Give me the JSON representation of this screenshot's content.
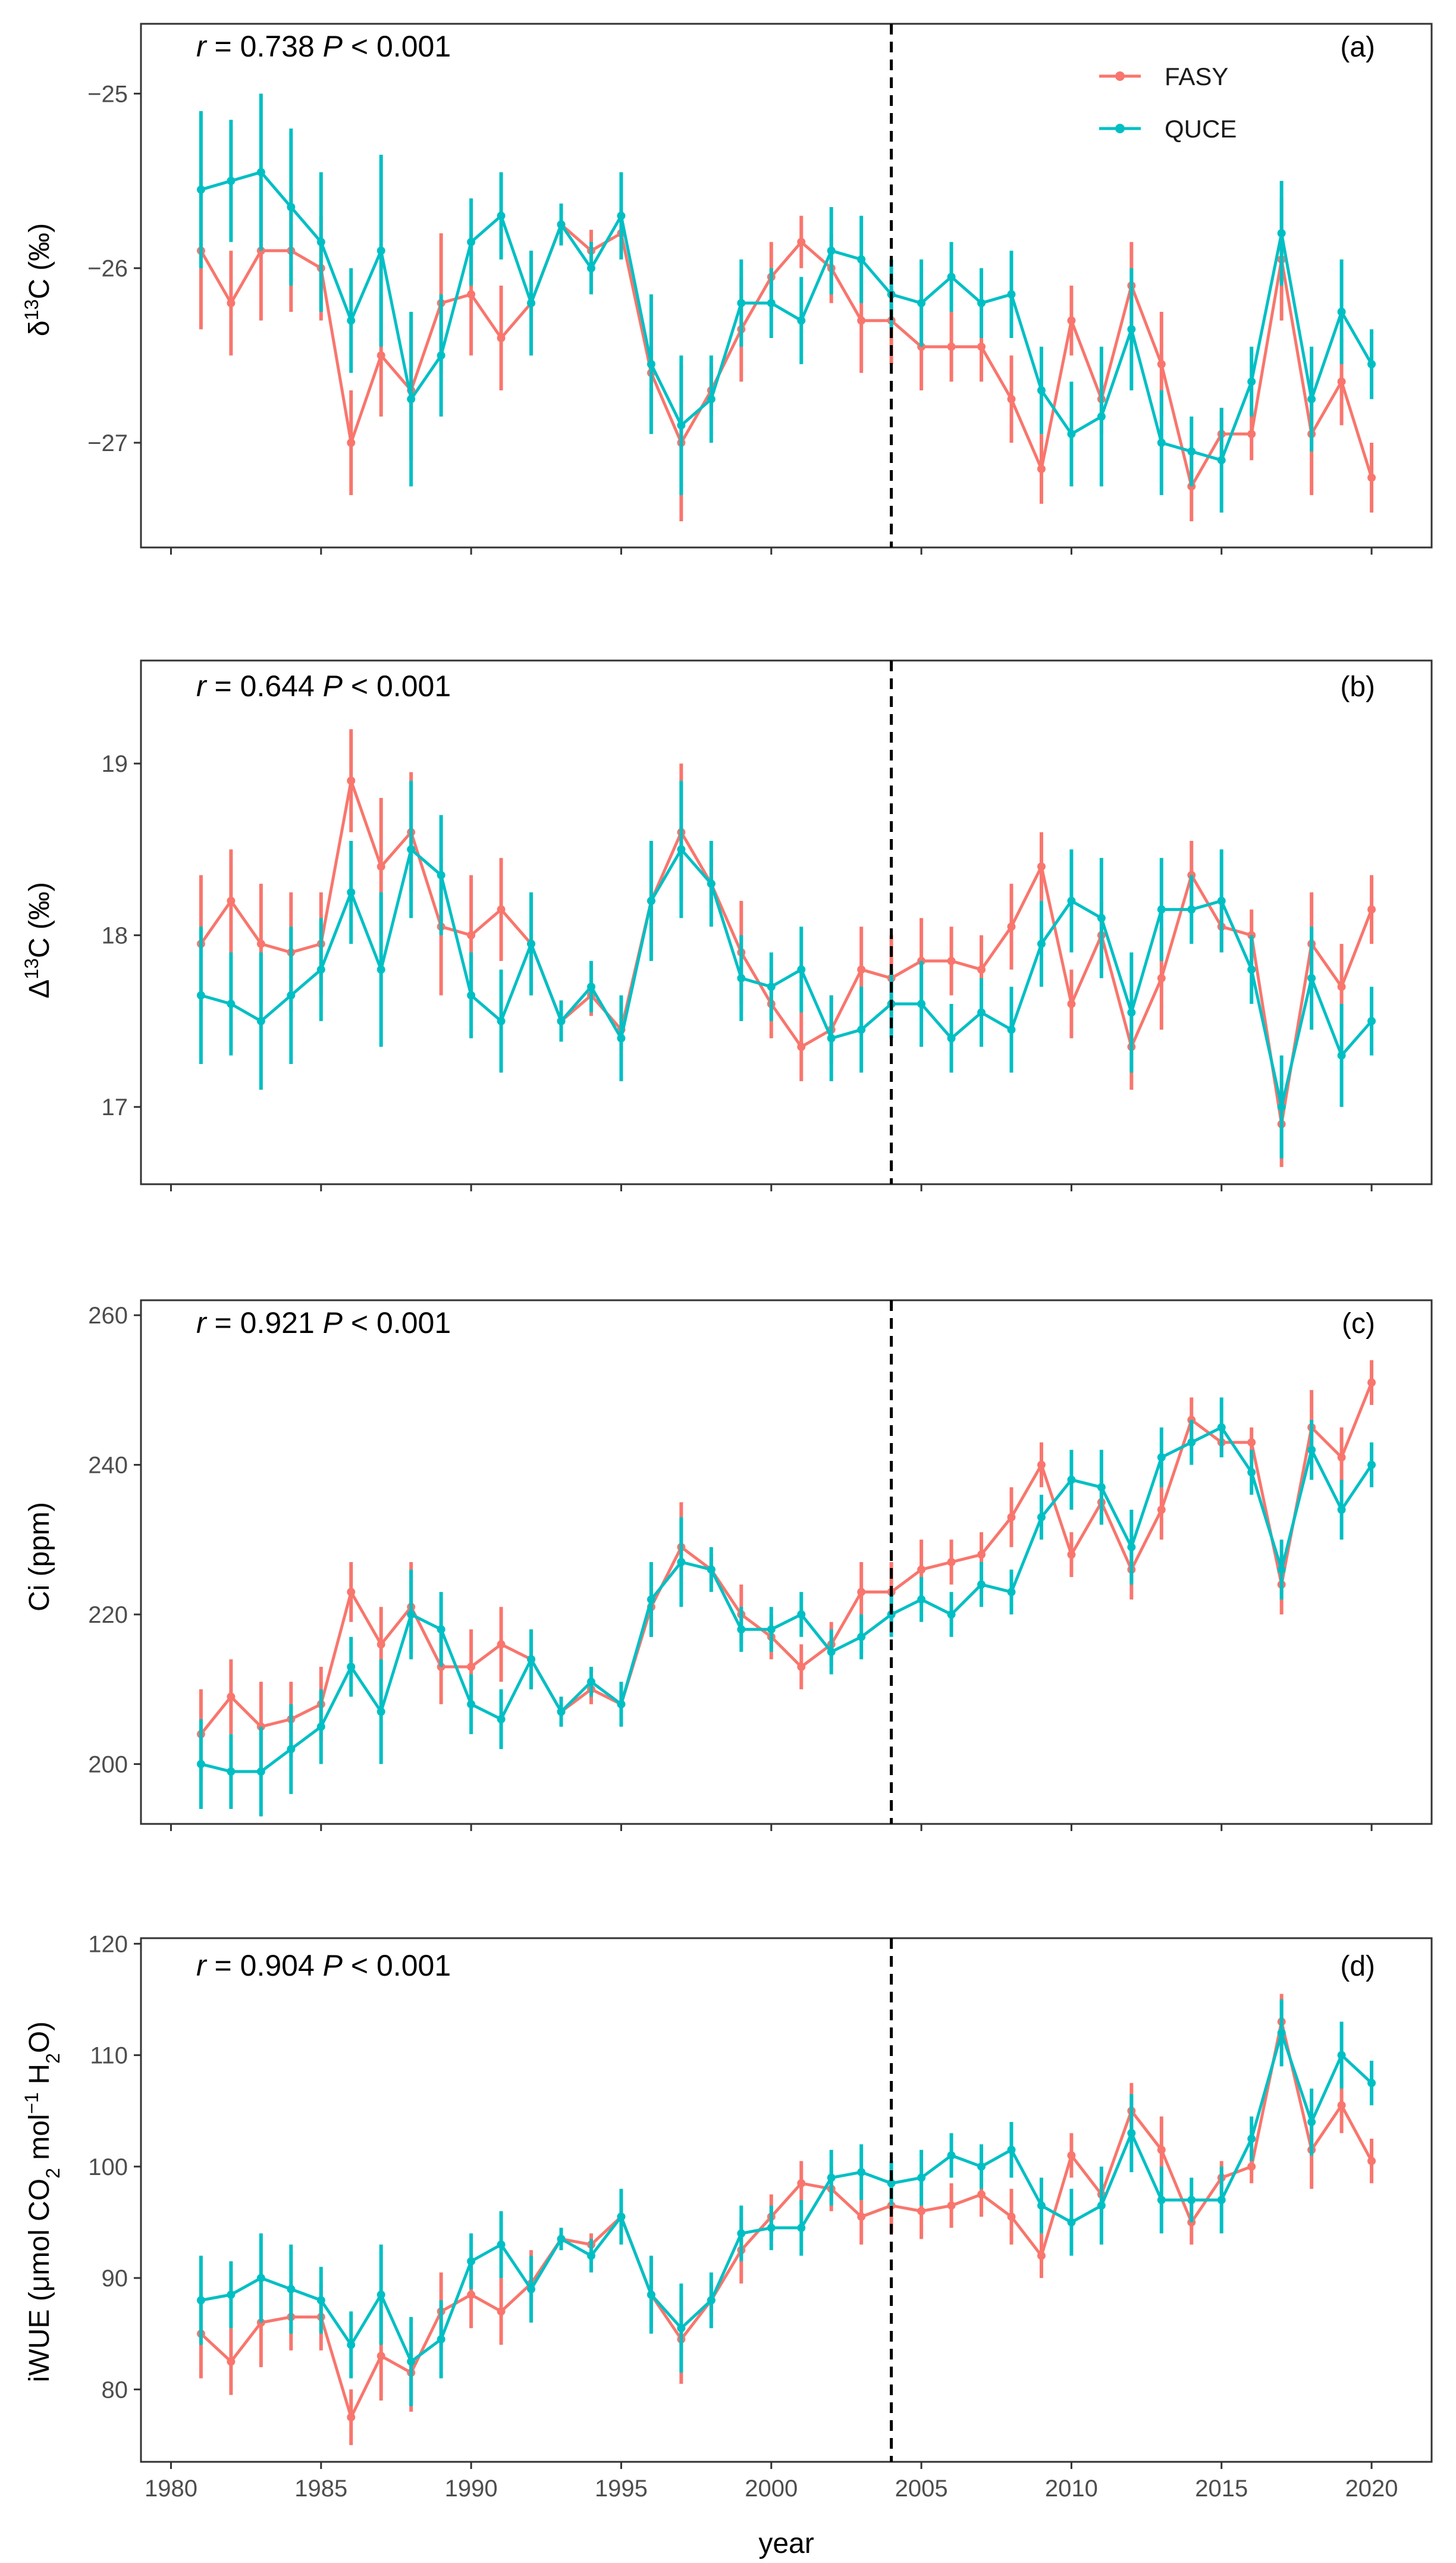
{
  "colors": {
    "FASY": "#F8766D",
    "QUCE": "#00BFC4"
  },
  "xaxis": {
    "title": "year",
    "range": [
      1979,
      2022
    ],
    "ticks": [
      1980,
      1985,
      1990,
      1995,
      2000,
      2005,
      2010,
      2015,
      2020
    ],
    "tick_labels": [
      "1980",
      "1985",
      "1990",
      "1995",
      "2000",
      "2005",
      "2010",
      "2015",
      "2020"
    ]
  },
  "legend": {
    "entries": [
      "FASY",
      "QUCE"
    ],
    "placement": "top-right of panel (a)"
  },
  "chart_data": [
    {
      "type": "line",
      "panel": "(a)",
      "stat_text": {
        "r": "r",
        "eq": " = 0.738 ",
        "P": "P",
        "pval": " < 0.001"
      },
      "ylabel": "δ13C (‰)",
      "ylabel_parts": {
        "main": "δ",
        "sup": "13",
        "rest": "C (‰)"
      },
      "ylim": [
        -27.6,
        -24.6
      ],
      "yticks": [
        -27,
        -26,
        -25
      ],
      "ytick_labels": [
        "−27",
        "−26",
        "−25"
      ],
      "vline_x": 2004,
      "x": [
        1981,
        1982,
        1983,
        1984,
        1985,
        1986,
        1987,
        1988,
        1989,
        1990,
        1991,
        1992,
        1993,
        1994,
        1995,
        1996,
        1997,
        1998,
        1999,
        2000,
        2001,
        2002,
        2003,
        2004,
        2005,
        2006,
        2007,
        2008,
        2009,
        2010,
        2011,
        2012,
        2013,
        2014,
        2015,
        2016,
        2017,
        2018,
        2019,
        2020
      ],
      "series": [
        {
          "name": "FASY",
          "values": [
            -25.9,
            -26.2,
            -25.9,
            -25.9,
            -26.0,
            -27.0,
            -26.5,
            -26.7,
            -26.2,
            -26.15,
            -26.4,
            -26.2,
            -25.75,
            -25.9,
            -25.8,
            -26.6,
            -27.0,
            -26.7,
            -26.35,
            -26.05,
            -25.85,
            -26.0,
            -26.3,
            -26.3,
            -26.45,
            -26.45,
            -26.45,
            -26.75,
            -27.15,
            -26.3,
            -26.75,
            -26.1,
            -26.55,
            -27.25,
            -26.95,
            -26.95,
            -25.95,
            -26.95,
            -26.65,
            -27.2
          ],
          "errors": [
            0.45,
            0.3,
            0.4,
            0.35,
            0.3,
            0.3,
            0.35,
            0.4,
            0.4,
            0.35,
            0.3,
            0.3,
            0.12,
            0.12,
            0.15,
            0.25,
            0.45,
            0.15,
            0.3,
            0.2,
            0.15,
            0.2,
            0.3,
            0.25,
            0.25,
            0.2,
            0.2,
            0.25,
            0.2,
            0.2,
            0.2,
            0.25,
            0.3,
            0.2,
            0.15,
            0.15,
            0.35,
            0.35,
            0.25,
            0.2
          ]
        },
        {
          "name": "QUCE",
          "values": [
            -25.55,
            -25.5,
            -25.45,
            -25.65,
            -25.85,
            -26.3,
            -25.9,
            -26.75,
            -26.5,
            -25.85,
            -25.7,
            -26.2,
            -25.75,
            -26.0,
            -25.7,
            -26.55,
            -26.9,
            -26.75,
            -26.2,
            -26.2,
            -26.3,
            -25.9,
            -25.95,
            -26.15,
            -26.2,
            -26.05,
            -26.2,
            -26.15,
            -26.7,
            -26.95,
            -26.85,
            -26.35,
            -27.0,
            -27.05,
            -27.1,
            -26.65,
            -25.8,
            -26.75,
            -26.25,
            -26.55
          ],
          "errors": [
            0.45,
            0.35,
            0.45,
            0.45,
            0.4,
            0.3,
            0.55,
            0.5,
            0.35,
            0.25,
            0.25,
            0.3,
            0.12,
            0.15,
            0.25,
            0.4,
            0.4,
            0.25,
            0.25,
            0.2,
            0.25,
            0.25,
            0.25,
            0.2,
            0.25,
            0.2,
            0.2,
            0.25,
            0.25,
            0.3,
            0.4,
            0.35,
            0.3,
            0.2,
            0.3,
            0.2,
            0.3,
            0.3,
            0.3,
            0.2
          ]
        }
      ]
    },
    {
      "type": "line",
      "panel": "(b)",
      "stat_text": {
        "r": "r",
        "eq": " = 0.644 ",
        "P": "P",
        "pval": " < 0.001"
      },
      "ylabel": "Δ13C (‰)",
      "ylabel_parts": {
        "main": "Δ",
        "sup": "13",
        "rest": "C (‰)"
      },
      "ylim": [
        16.55,
        19.6
      ],
      "yticks": [
        17,
        18,
        19
      ],
      "ytick_labels": [
        "17",
        "18",
        "19"
      ],
      "vline_x": 2004,
      "x": [
        1981,
        1982,
        1983,
        1984,
        1985,
        1986,
        1987,
        1988,
        1989,
        1990,
        1991,
        1992,
        1993,
        1994,
        1995,
        1996,
        1997,
        1998,
        1999,
        2000,
        2001,
        2002,
        2003,
        2004,
        2005,
        2006,
        2007,
        2008,
        2009,
        2010,
        2011,
        2012,
        2013,
        2014,
        2015,
        2016,
        2017,
        2018,
        2019,
        2020
      ],
      "series": [
        {
          "name": "FASY",
          "values": [
            17.95,
            18.2,
            17.95,
            17.9,
            17.95,
            18.9,
            18.4,
            18.6,
            18.05,
            18.0,
            18.15,
            17.95,
            17.5,
            17.65,
            17.45,
            18.2,
            18.6,
            18.3,
            17.9,
            17.6,
            17.35,
            17.45,
            17.8,
            17.75,
            17.85,
            17.85,
            17.8,
            18.05,
            18.4,
            17.6,
            18.0,
            17.35,
            17.75,
            18.35,
            18.05,
            18.0,
            16.9,
            17.95,
            17.7,
            18.15
          ],
          "errors": [
            0.4,
            0.3,
            0.35,
            0.35,
            0.3,
            0.3,
            0.4,
            0.35,
            0.4,
            0.35,
            0.3,
            0.3,
            0.12,
            0.12,
            0.15,
            0.3,
            0.4,
            0.15,
            0.3,
            0.2,
            0.2,
            0.2,
            0.25,
            0.25,
            0.25,
            0.2,
            0.2,
            0.25,
            0.2,
            0.2,
            0.2,
            0.25,
            0.3,
            0.2,
            0.15,
            0.15,
            0.25,
            0.3,
            0.25,
            0.2
          ]
        },
        {
          "name": "QUCE",
          "values": [
            17.65,
            17.6,
            17.5,
            17.65,
            17.8,
            18.25,
            17.8,
            18.5,
            18.35,
            17.65,
            17.5,
            17.95,
            17.5,
            17.7,
            17.4,
            18.2,
            18.5,
            18.3,
            17.75,
            17.7,
            17.8,
            17.4,
            17.45,
            17.6,
            17.6,
            17.4,
            17.55,
            17.45,
            17.95,
            18.2,
            18.1,
            17.55,
            18.15,
            18.15,
            18.2,
            17.8,
            17.0,
            17.75,
            17.3,
            17.5
          ],
          "errors": [
            0.4,
            0.3,
            0.4,
            0.4,
            0.3,
            0.3,
            0.45,
            0.4,
            0.35,
            0.25,
            0.3,
            0.3,
            0.12,
            0.15,
            0.25,
            0.35,
            0.4,
            0.25,
            0.25,
            0.2,
            0.25,
            0.25,
            0.25,
            0.2,
            0.25,
            0.2,
            0.2,
            0.25,
            0.25,
            0.3,
            0.35,
            0.35,
            0.3,
            0.2,
            0.3,
            0.2,
            0.3,
            0.3,
            0.3,
            0.2
          ]
        }
      ]
    },
    {
      "type": "line",
      "panel": "(c)",
      "stat_text": {
        "r": "r",
        "eq": " = 0.921 ",
        "P": "P",
        "pval": " < 0.001"
      },
      "ylabel": "Ci (ppm)",
      "ylim": [
        192,
        262
      ],
      "yticks": [
        200,
        220,
        240,
        260
      ],
      "ytick_labels": [
        "200",
        "220",
        "240",
        "260"
      ],
      "vline_x": 2004,
      "x": [
        1981,
        1982,
        1983,
        1984,
        1985,
        1986,
        1987,
        1988,
        1989,
        1990,
        1991,
        1992,
        1993,
        1994,
        1995,
        1996,
        1997,
        1998,
        1999,
        2000,
        2001,
        2002,
        2003,
        2004,
        2005,
        2006,
        2007,
        2008,
        2009,
        2010,
        2011,
        2012,
        2013,
        2014,
        2015,
        2016,
        2017,
        2018,
        2019,
        2020
      ],
      "series": [
        {
          "name": "FASY",
          "values": [
            204,
            209,
            205,
            206,
            208,
            223,
            216,
            221,
            213,
            213,
            216,
            214,
            207,
            210,
            208,
            221,
            229,
            226,
            220,
            217,
            213,
            216,
            223,
            223,
            226,
            227,
            228,
            233,
            240,
            228,
            235,
            226,
            234,
            246,
            243,
            243,
            224,
            245,
            241,
            251
          ],
          "errors": [
            6,
            5,
            6,
            5,
            5,
            4,
            5,
            6,
            5,
            5,
            5,
            4,
            2,
            2,
            2,
            4,
            6,
            2,
            4,
            3,
            3,
            3,
            4,
            4,
            4,
            3,
            3,
            4,
            3,
            3,
            3,
            4,
            4,
            3,
            2,
            2,
            4,
            5,
            4,
            3
          ]
        },
        {
          "name": "QUCE",
          "values": [
            200,
            199,
            199,
            202,
            205,
            213,
            207,
            220,
            218,
            208,
            206,
            214,
            207,
            211,
            208,
            222,
            227,
            226,
            218,
            218,
            220,
            215,
            217,
            220,
            222,
            220,
            224,
            223,
            233,
            238,
            237,
            229,
            241,
            243,
            245,
            239,
            226,
            242,
            234,
            240
          ],
          "errors": [
            6,
            5,
            6,
            6,
            5,
            4,
            7,
            6,
            5,
            4,
            4,
            4,
            2,
            2,
            3,
            5,
            6,
            3,
            3,
            3,
            3,
            3,
            3,
            3,
            3,
            3,
            3,
            3,
            3,
            4,
            5,
            5,
            4,
            3,
            4,
            3,
            4,
            4,
            4,
            3
          ]
        }
      ]
    },
    {
      "type": "line",
      "panel": "(d)",
      "stat_text": {
        "r": "r",
        "eq": " = 0.904 ",
        "P": "P",
        "pval": " < 0.001"
      },
      "ylabel": "iWUE (μmol CO2 mol−1 H2O)",
      "ylabel_parts": {
        "a": "iWUE (μmol CO",
        "b": "2",
        "c": " mol",
        "d": "−1",
        "e": " H",
        "f": "2",
        "g": "O)"
      },
      "ylim": [
        73.5,
        120.5
      ],
      "yticks": [
        80,
        90,
        100,
        110,
        120
      ],
      "ytick_labels": [
        "80",
        "90",
        "100",
        "110",
        "120"
      ],
      "vline_x": 2004,
      "x": [
        1981,
        1982,
        1983,
        1984,
        1985,
        1986,
        1987,
        1988,
        1989,
        1990,
        1991,
        1992,
        1993,
        1994,
        1995,
        1996,
        1997,
        1998,
        1999,
        2000,
        2001,
        2002,
        2003,
        2004,
        2005,
        2006,
        2007,
        2008,
        2009,
        2010,
        2011,
        2012,
        2013,
        2014,
        2015,
        2016,
        2017,
        2018,
        2019,
        2020
      ],
      "series": [
        {
          "name": "FASY",
          "values": [
            85,
            82.5,
            86,
            86.5,
            86.5,
            77.5,
            83,
            81.5,
            87,
            88.5,
            87,
            89.5,
            93.5,
            93,
            95.5,
            88.5,
            84.5,
            88,
            92.5,
            95.5,
            98.5,
            98,
            95.5,
            96.5,
            96,
            96.5,
            97.5,
            95.5,
            92,
            101,
            97.5,
            105,
            101.5,
            95,
            99,
            100,
            113,
            101.5,
            105.5,
            100.5
          ],
          "errors": [
            4,
            3,
            4,
            3,
            3,
            2.5,
            4,
            3.5,
            3.5,
            3,
            3,
            3,
            1,
            1,
            1.5,
            3,
            4,
            1.5,
            3,
            2,
            2,
            2,
            2.5,
            2.5,
            2.5,
            2,
            2,
            2.5,
            2,
            2,
            2,
            2.5,
            3,
            2,
            1.5,
            1.5,
            2.5,
            3.5,
            2.5,
            2
          ]
        },
        {
          "name": "QUCE",
          "values": [
            88,
            88.5,
            90,
            89,
            88,
            84,
            88.5,
            82.5,
            84.5,
            91.5,
            93,
            89,
            93.5,
            92,
            95.5,
            88.5,
            85.5,
            88,
            94,
            94.5,
            94.5,
            99,
            99.5,
            98.5,
            99,
            101,
            100,
            101.5,
            96.5,
            95,
            96.5,
            103,
            97,
            97,
            97,
            102.5,
            112,
            104,
            110,
            107.5
          ],
          "errors": [
            4,
            3,
            4,
            4,
            3,
            3,
            4.5,
            4,
            3.5,
            2.5,
            3,
            3,
            1,
            1.5,
            2.5,
            3.5,
            4,
            2.5,
            2.5,
            2,
            2.5,
            2.5,
            2.5,
            2,
            2.5,
            2,
            2,
            2.5,
            2.5,
            3,
            3.5,
            3.5,
            3,
            2,
            3,
            2,
            3,
            3,
            3,
            2
          ]
        }
      ]
    }
  ]
}
